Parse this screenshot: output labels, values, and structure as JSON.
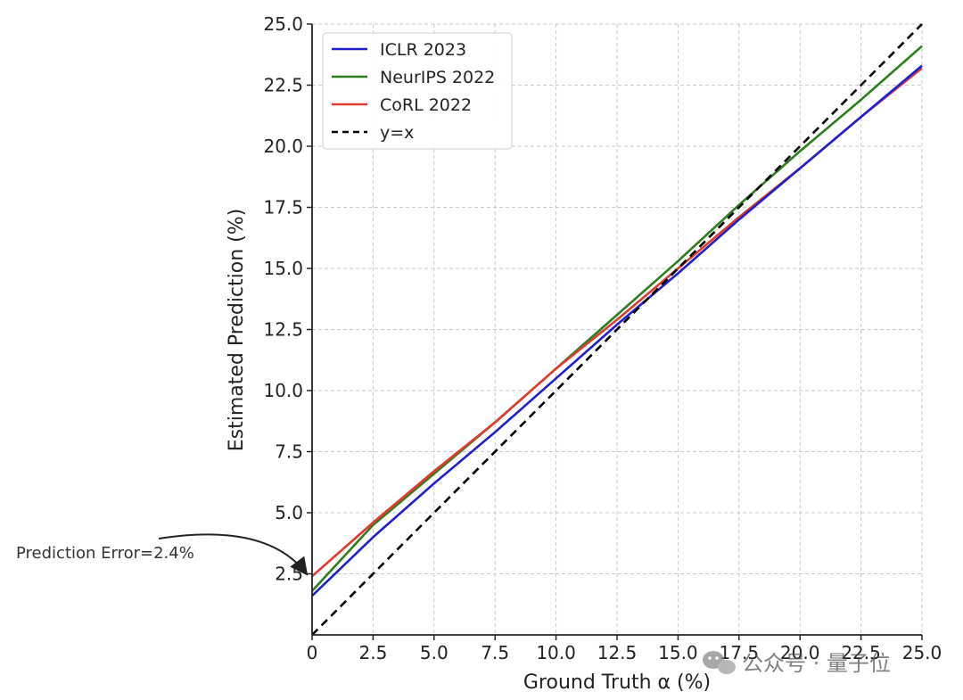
{
  "chart_data": {
    "type": "line",
    "xlabel": "Ground Truth α (%)",
    "ylabel": "Estimated Prediction (%)",
    "xlim": [
      0,
      25
    ],
    "ylim": [
      0,
      25
    ],
    "x_ticks": [
      "0",
      "2.5",
      "5.0",
      "7.5",
      "10.0",
      "12.5",
      "15.0",
      "17.5",
      "20.0",
      "22.5",
      "25.0"
    ],
    "y_ticks": [
      "2.5",
      "5.0",
      "7.5",
      "10.0",
      "12.5",
      "15.0",
      "17.5",
      "20.0",
      "22.5",
      "25.0"
    ],
    "grid": true,
    "legend_position": "top-left",
    "series": [
      {
        "name": "ICLR 2023",
        "color": "#1f1fd0",
        "style": "solid",
        "x": [
          0,
          2.5,
          5,
          7.5,
          10,
          12.5,
          15,
          17.5,
          20,
          22.5,
          25
        ],
        "y": [
          1.6,
          4.0,
          6.2,
          8.3,
          10.5,
          12.7,
          14.8,
          17.0,
          19.1,
          21.2,
          23.3
        ]
      },
      {
        "name": "NeurIPS 2022",
        "color": "#2e7d1e",
        "style": "solid",
        "x": [
          0,
          2.5,
          5,
          7.5,
          10,
          12.5,
          15,
          17.5,
          20,
          22.5,
          25
        ],
        "y": [
          1.8,
          4.5,
          6.6,
          8.7,
          10.9,
          13.1,
          15.3,
          17.6,
          19.8,
          21.9,
          24.1
        ]
      },
      {
        "name": "CoRL 2022",
        "color": "#e03a2e",
        "style": "solid",
        "x": [
          0,
          2.5,
          5,
          7.5,
          10,
          12.5,
          15,
          17.5,
          20,
          22.5,
          25
        ],
        "y": [
          2.4,
          4.6,
          6.7,
          8.7,
          10.9,
          12.9,
          15.0,
          17.1,
          19.1,
          21.2,
          23.2
        ]
      },
      {
        "name": "y=x",
        "color": "#000000",
        "style": "dashed",
        "x": [
          0,
          25
        ],
        "y": [
          0,
          25
        ]
      }
    ],
    "annotations": [
      {
        "text": "Prediction Error=2.4%",
        "target_x": 0,
        "target_y": 2.4
      }
    ]
  },
  "watermark": {
    "text": "公众号 · 量子位",
    "icon": "wechat-icon"
  }
}
